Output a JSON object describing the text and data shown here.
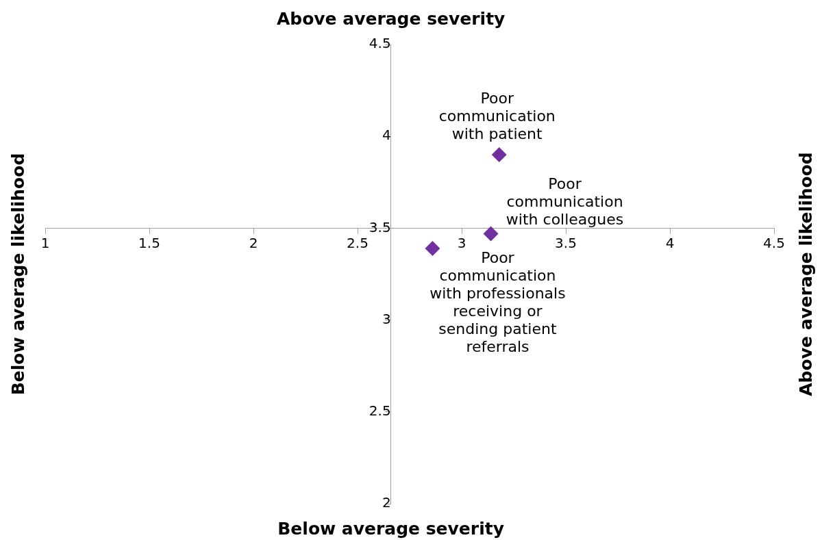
{
  "chart_data": {
    "type": "scatter",
    "marker": "diamond",
    "grid": false,
    "legend": false,
    "x": [
      3.18,
      3.14,
      2.86
    ],
    "series": [
      {
        "color": "#7030a0",
        "values": [
          3.9,
          3.47,
          3.39
        ]
      }
    ],
    "xlim": [
      1,
      4.5
    ],
    "xticks": [
      1,
      1.5,
      2,
      2.5,
      3,
      3.5,
      4,
      4.5
    ],
    "ylim": [
      2,
      4.5
    ],
    "yticks": [
      2,
      2.5,
      3,
      3.5,
      4,
      4.5
    ],
    "annotations": [
      "Above average severity",
      "Below average likelihood",
      "Above average likelihood",
      "Below average severity",
      {
        "text": "Poor communication with patient",
        "x": 3.18,
        "y": 3.9
      },
      {
        "text": "Poor communication with colleagues",
        "x": 3.14,
        "y": 3.47
      },
      {
        "text": "Poor communication with professionals receiving or sending patient referrals",
        "x": 2.86,
        "y": 3.39
      }
    ]
  }
}
